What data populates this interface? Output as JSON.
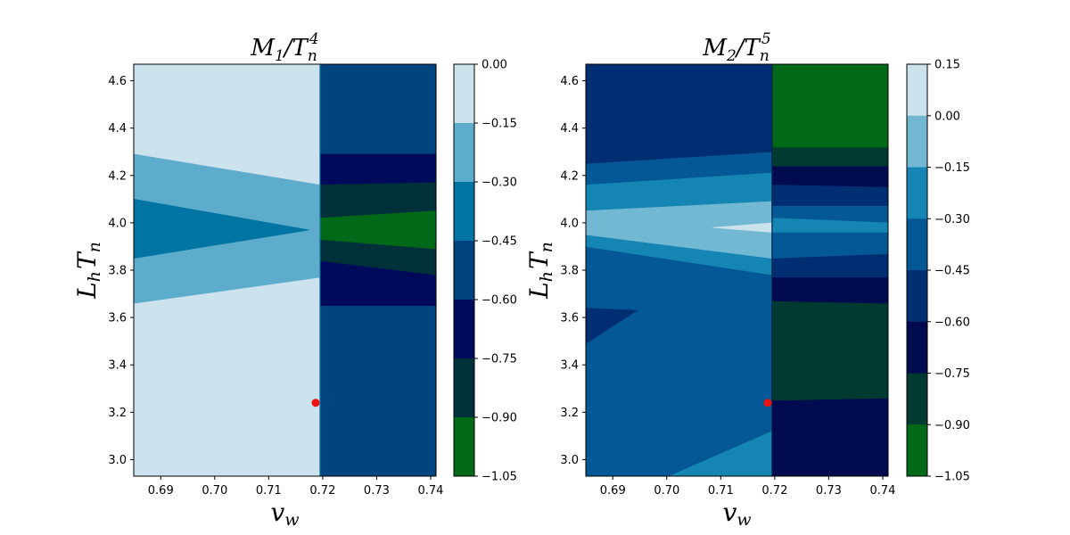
{
  "chart_data": [
    {
      "type": "heatmap",
      "title": "M_1/T_n^4",
      "title_base": "M",
      "title_sub": "1",
      "title_den": "T",
      "title_den_sub": "n",
      "title_den_sup": "4",
      "xlabel": "v_w",
      "ylabel": "L_h T_n",
      "xlim": [
        0.685,
        0.741
      ],
      "ylim": [
        2.93,
        4.67
      ],
      "xticks": [
        "0.69",
        "0.70",
        "0.71",
        "0.72",
        "0.73",
        "0.74"
      ],
      "yticks": [
        "3.0",
        "3.2",
        "3.4",
        "3.6",
        "3.8",
        "4.0",
        "4.2",
        "4.4",
        "4.6"
      ],
      "colorbar_ticks": [
        "0.00",
        "−0.15",
        "−0.30",
        "−0.45",
        "−0.60",
        "−0.75",
        "−0.90",
        "−1.05"
      ],
      "colorbar_levels": [
        0.0,
        -0.15,
        -0.3,
        -0.45,
        -0.6,
        -0.75,
        -0.9,
        -1.05
      ],
      "colorbar_colors": [
        "#cce3ed",
        "#5eaccb",
        "#0074a2",
        "#004580",
        "#000a5a",
        "#00303a",
        "#006a18"
      ],
      "marker": {
        "x": 0.7187,
        "y": 3.24,
        "color": "#ee1111"
      },
      "regions": [
        {
          "level": 0,
          "points": [
            [
              0.685,
              2.93
            ],
            [
              0.7195,
              2.93
            ],
            [
              0.7195,
              4.67
            ],
            [
              0.685,
              4.67
            ]
          ]
        },
        {
          "level": 1,
          "points": [
            [
              0.685,
              4.29
            ],
            [
              0.7195,
              4.16
            ],
            [
              0.7195,
              3.77
            ],
            [
              0.685,
              3.66
            ]
          ]
        },
        {
          "level": 2,
          "points": [
            [
              0.685,
              4.1
            ],
            [
              0.7175,
              3.97
            ],
            [
              0.685,
              3.85
            ]
          ]
        },
        {
          "level": 3,
          "points": [
            [
              0.7195,
              2.93
            ],
            [
              0.741,
              2.93
            ],
            [
              0.741,
              4.67
            ],
            [
              0.7195,
              4.67
            ]
          ]
        },
        {
          "level": 4,
          "points": [
            [
              0.7195,
              4.29
            ],
            [
              0.741,
              4.29
            ],
            [
              0.741,
              3.65
            ],
            [
              0.7195,
              3.65
            ]
          ]
        },
        {
          "level": 5,
          "points": [
            [
              0.7195,
              4.16
            ],
            [
              0.741,
              4.17
            ],
            [
              0.741,
              3.78
            ],
            [
              0.7195,
              3.84
            ]
          ]
        },
        {
          "level": 6,
          "points": [
            [
              0.7195,
              4.02
            ],
            [
              0.741,
              4.05
            ],
            [
              0.741,
              3.89
            ],
            [
              0.7195,
              3.93
            ]
          ]
        }
      ]
    },
    {
      "type": "heatmap",
      "title": "M_2/T_n^5",
      "title_base": "M",
      "title_sub": "2",
      "title_den": "T",
      "title_den_sub": "n",
      "title_den_sup": "5",
      "xlabel": "v_w",
      "ylabel": "L_h T_n",
      "xlim": [
        0.685,
        0.741
      ],
      "ylim": [
        2.93,
        4.67
      ],
      "xticks": [
        "0.69",
        "0.70",
        "0.71",
        "0.72",
        "0.73",
        "0.74"
      ],
      "yticks": [
        "3.0",
        "3.2",
        "3.4",
        "3.6",
        "3.8",
        "4.0",
        "4.2",
        "4.4",
        "4.6"
      ],
      "colorbar_ticks": [
        "0.15",
        "0.00",
        "−0.15",
        "−0.30",
        "−0.45",
        "−0.60",
        "−0.75",
        "−0.90",
        "−1.05"
      ],
      "colorbar_levels": [
        0.15,
        0.0,
        -0.15,
        -0.3,
        -0.45,
        -0.6,
        -0.75,
        -0.9,
        -1.05
      ],
      "colorbar_colors": [
        "#cce3ed",
        "#73b8d2",
        "#1586b3",
        "#045895",
        "#002e72",
        "#000a4f",
        "#003a30",
        "#006a18"
      ],
      "marker": {
        "x": 0.7187,
        "y": 3.24,
        "color": "#ee1111"
      },
      "regions": [
        {
          "level": 3,
          "points": [
            [
              0.685,
              2.93
            ],
            [
              0.7195,
              2.93
            ],
            [
              0.7195,
              4.67
            ],
            [
              0.685,
              4.67
            ]
          ]
        },
        {
          "level": 4,
          "points": [
            [
              0.685,
              4.67
            ],
            [
              0.7195,
              4.67
            ],
            [
              0.7195,
              4.3
            ],
            [
              0.685,
              4.25
            ]
          ]
        },
        {
          "level": 2,
          "points": [
            [
              0.685,
              4.16
            ],
            [
              0.7195,
              4.21
            ],
            [
              0.7195,
              3.78
            ],
            [
              0.685,
              3.9
            ]
          ]
        },
        {
          "level": 1,
          "points": [
            [
              0.685,
              4.05
            ],
            [
              0.7195,
              4.09
            ],
            [
              0.7195,
              3.85
            ],
            [
              0.685,
              3.95
            ]
          ]
        },
        {
          "level": 0,
          "points": [
            [
              0.7085,
              3.98
            ],
            [
              0.7195,
              4.0
            ],
            [
              0.7195,
              3.96
            ]
          ]
        },
        {
          "level": 4,
          "points": [
            [
              0.685,
              3.49
            ],
            [
              0.6945,
              3.63
            ],
            [
              0.685,
              3.64
            ]
          ]
        },
        {
          "level": 2,
          "points": [
            [
              0.7005,
              2.93
            ],
            [
              0.7195,
              2.93
            ],
            [
              0.7195,
              3.12
            ]
          ]
        },
        {
          "level": 5,
          "points": [
            [
              0.7195,
              2.93
            ],
            [
              0.741,
              2.93
            ],
            [
              0.741,
              3.26
            ],
            [
              0.7195,
              3.25
            ]
          ]
        },
        {
          "level": 6,
          "points": [
            [
              0.7195,
              3.25
            ],
            [
              0.741,
              3.26
            ],
            [
              0.741,
              3.66
            ],
            [
              0.7195,
              3.67
            ]
          ]
        },
        {
          "level": 5,
          "points": [
            [
              0.7195,
              3.67
            ],
            [
              0.741,
              3.66
            ],
            [
              0.741,
              4.24
            ],
            [
              0.7195,
              4.24
            ]
          ]
        },
        {
          "level": 4,
          "points": [
            [
              0.7195,
              3.77
            ],
            [
              0.741,
              3.77
            ],
            [
              0.741,
              4.15
            ],
            [
              0.7195,
              4.16
            ]
          ]
        },
        {
          "level": 3,
          "points": [
            [
              0.7195,
              3.85
            ],
            [
              0.741,
              3.87
            ],
            [
              0.741,
              4.07
            ],
            [
              0.7195,
              4.07
            ]
          ]
        },
        {
          "level": 2,
          "points": [
            [
              0.7195,
              3.96
            ],
            [
              0.741,
              3.96
            ],
            [
              0.741,
              4.0
            ],
            [
              0.7195,
              4.02
            ]
          ]
        },
        {
          "level": 6,
          "points": [
            [
              0.7195,
              4.24
            ],
            [
              0.741,
              4.24
            ],
            [
              0.741,
              4.32
            ],
            [
              0.7195,
              4.32
            ]
          ]
        },
        {
          "level": 7,
          "points": [
            [
              0.7195,
              4.32
            ],
            [
              0.741,
              4.32
            ],
            [
              0.741,
              4.67
            ],
            [
              0.7195,
              4.67
            ]
          ]
        }
      ]
    }
  ]
}
